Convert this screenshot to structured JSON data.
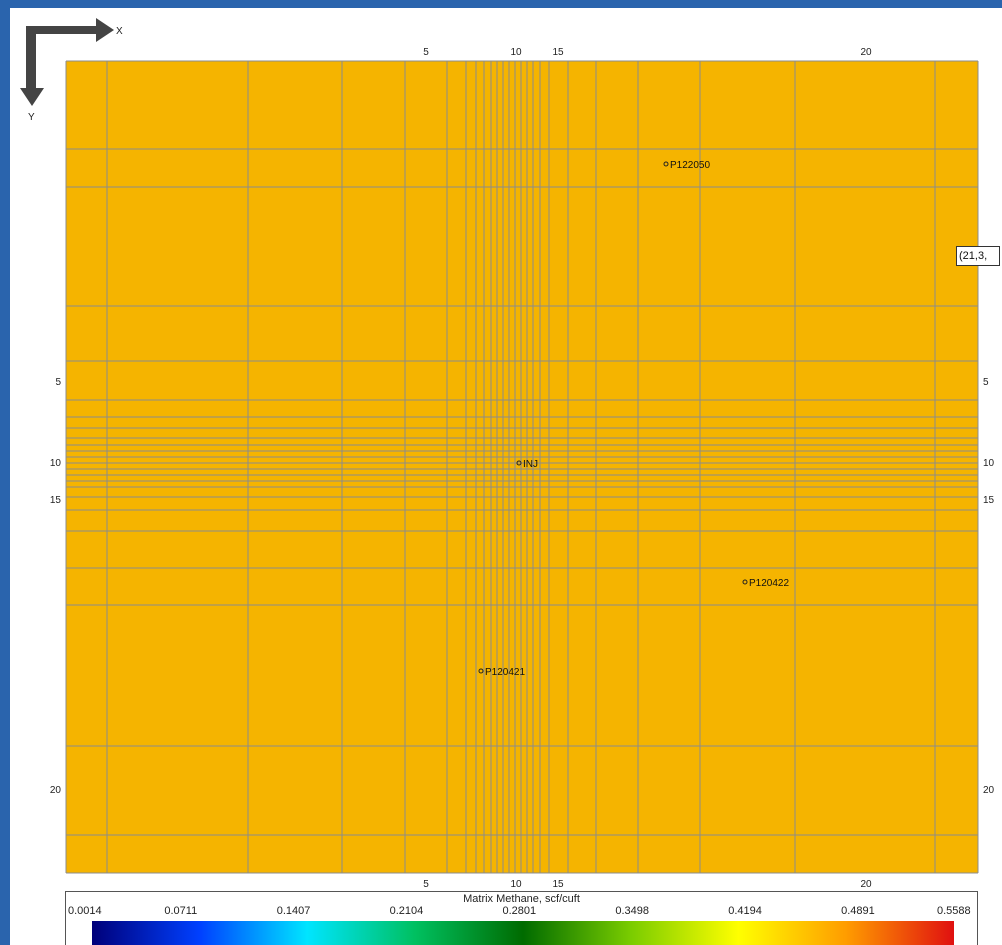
{
  "axes": {
    "x_label": "X",
    "y_label": "Y",
    "x_ticks": [
      {
        "label": "5",
        "index": 5
      },
      {
        "label": "10",
        "index": 10
      },
      {
        "label": "15",
        "index": 15
      },
      {
        "label": "20",
        "index": 20
      }
    ],
    "y_ticks": [
      {
        "label": "5",
        "index": 5
      },
      {
        "label": "10",
        "index": 10
      },
      {
        "label": "15",
        "index": 15
      },
      {
        "label": "20",
        "index": 20
      }
    ]
  },
  "grid": {
    "fill_color": "#f5b400",
    "line_color": "#8c8c8c",
    "x_columns": 21,
    "y_rows": 21
  },
  "wells": [
    {
      "name": "P122050"
    },
    {
      "name": "INJ"
    },
    {
      "name": "P120422"
    },
    {
      "name": "P120421"
    }
  ],
  "cell_tooltip": "(21,3,",
  "legend": {
    "title": "Matrix Methane, scf/cuft",
    "ticks": [
      "0.0014",
      "0.0711",
      "0.1407",
      "0.2104",
      "0.2801",
      "0.3498",
      "0.4194",
      "0.4891",
      "0.5588"
    ],
    "colors": [
      "#00007a",
      "#0040ff",
      "#00e5ff",
      "#00c060",
      "#006b00",
      "#7acc00",
      "#ffff00",
      "#ff9c00",
      "#e01010"
    ]
  },
  "chart_data": {
    "type": "heatmap",
    "title": "Matrix Methane, scf/cuft",
    "grid_shape": [
      21,
      21
    ],
    "uniform_value": 0.41,
    "color_range": [
      0.0014,
      0.5588
    ]
  }
}
